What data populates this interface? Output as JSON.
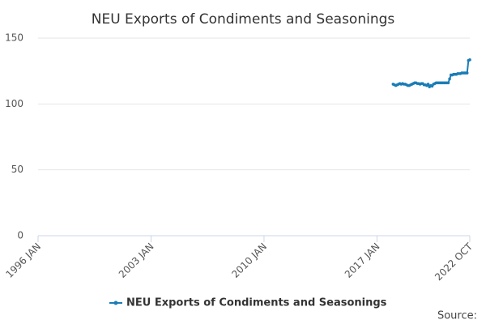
{
  "chart_data": {
    "type": "line",
    "title": "NEU Exports of Condiments and Seasonings",
    "source": "Source:",
    "x": [
      "2018 JAN",
      "2018 FEB",
      "2018 MAR",
      "2018 APR",
      "2018 MAY",
      "2018 JUN",
      "2018 JUL",
      "2018 AUG",
      "2018 SEP",
      "2018 OCT",
      "2018 NOV",
      "2018 DEC",
      "2019 JAN",
      "2019 FEB",
      "2019 MAR",
      "2019 APR",
      "2019 MAY",
      "2019 JUN",
      "2019 JUL",
      "2019 AUG",
      "2019 SEP",
      "2019 OCT",
      "2019 NOV",
      "2019 DEC",
      "2020 JAN",
      "2020 FEB",
      "2020 MAR",
      "2020 APR",
      "2020 MAY",
      "2020 JUN",
      "2020 JUL",
      "2020 AUG",
      "2020 SEP",
      "2020 OCT",
      "2020 NOV",
      "2020 DEC",
      "2021 JAN",
      "2021 FEB",
      "2021 MAR",
      "2021 APR",
      "2021 MAY",
      "2021 JUN",
      "2021 JUL",
      "2021 AUG",
      "2021 SEP",
      "2021 OCT",
      "2021 NOV",
      "2021 DEC",
      "2022 JAN",
      "2022 FEB",
      "2022 MAR",
      "2022 APR",
      "2022 MAY",
      "2022 JUN",
      "2022 JUL",
      "2022 AUG",
      "2022 SEP",
      "2022 OCT"
    ],
    "series": [
      {
        "name": "NEU Exports of Condiments and Seasonings",
        "color": "#1a7db6",
        "values": [
          115,
          114.5,
          114,
          114.5,
          115,
          115.5,
          115,
          115.5,
          115,
          115,
          114.5,
          114,
          114,
          114.5,
          115,
          115.5,
          116,
          116,
          115.5,
          115.5,
          115,
          115.5,
          115.5,
          114.5,
          114.5,
          114,
          115,
          113,
          114,
          113.5,
          115,
          115.5,
          116,
          116,
          116,
          116,
          116,
          116,
          116,
          116,
          116,
          116,
          119,
          122,
          122,
          122.5,
          122.5,
          122.5,
          123,
          123,
          123,
          123.5,
          123.5,
          123.5,
          123.5,
          123.5,
          133,
          133.5
        ]
      }
    ],
    "xlim": [
      "1996 JAN",
      "2022 OCT"
    ],
    "xticks": [
      "1996 JAN",
      "2003 JAN",
      "2010 JAN",
      "2017 JAN",
      "2022 OCT"
    ],
    "ylim": [
      0,
      150
    ],
    "yticks": [
      0,
      50,
      100,
      150
    ],
    "grid": true
  }
}
